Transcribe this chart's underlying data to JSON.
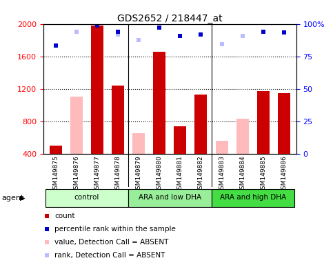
{
  "title": "GDS2652 / 218447_at",
  "samples": [
    "GSM149875",
    "GSM149876",
    "GSM149877",
    "GSM149878",
    "GSM149879",
    "GSM149880",
    "GSM149881",
    "GSM149882",
    "GSM149883",
    "GSM149884",
    "GSM149885",
    "GSM149886"
  ],
  "groups": [
    {
      "label": "control",
      "color": "#ccffcc",
      "start": 0,
      "end": 3
    },
    {
      "label": "ARA and low DHA",
      "color": "#99ee99",
      "start": 4,
      "end": 7
    },
    {
      "label": "ARA and high DHA",
      "color": "#44dd44",
      "start": 8,
      "end": 11
    }
  ],
  "count_values": [
    500,
    null,
    1980,
    1240,
    null,
    1660,
    740,
    1130,
    null,
    null,
    1170,
    1150
  ],
  "absent_values": [
    null,
    1100,
    null,
    null,
    650,
    null,
    null,
    null,
    560,
    830,
    null,
    null
  ],
  "percentile_values": [
    1730,
    null,
    1980,
    1900,
    null,
    1950,
    1850,
    1870,
    null,
    null,
    1900,
    1890
  ],
  "absent_rank_values": [
    null,
    1900,
    null,
    1870,
    1800,
    null,
    null,
    null,
    1750,
    1850,
    null,
    null
  ],
  "ylim_left": [
    400,
    2000
  ],
  "ylim_right": [
    0,
    100
  ],
  "yticks_left": [
    400,
    800,
    1200,
    1600,
    2000
  ],
  "yticks_right": [
    0,
    25,
    50,
    75,
    100
  ],
  "color_count": "#cc0000",
  "color_percentile": "#0000cc",
  "color_absent_value": "#ffbbbb",
  "color_absent_rank": "#bbbbff",
  "bar_width": 0.6,
  "sample_bg_color": "#d0d0d0",
  "figsize": [
    4.83,
    3.84
  ],
  "dpi": 100
}
